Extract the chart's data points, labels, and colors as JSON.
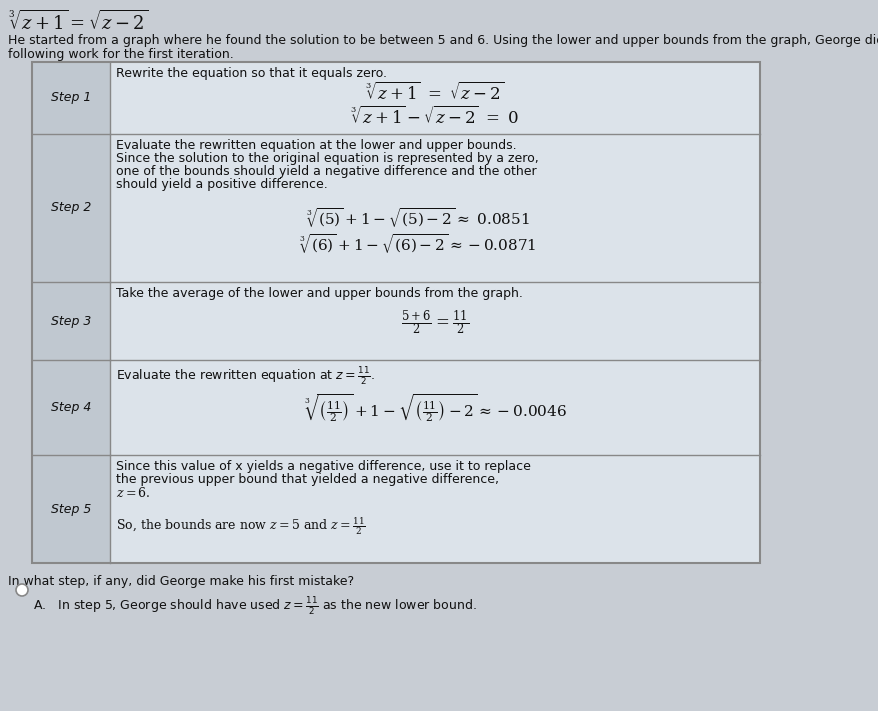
{
  "title_eq": "$\\sqrt[3]{z+1} = \\sqrt{z-2}$",
  "intro_line1": "He started from a graph where he found the solution to be between 5 and 6. Using the lower and upper bounds from the graph, George did the",
  "intro_line2": "following work for the first iteration.",
  "step1_label": "Step 1",
  "step1_desc": "Rewrite the equation so that it equals zero.",
  "step1_eq1": "$\\sqrt[3]{z+1} \\ = \\ \\sqrt{z-2}$",
  "step1_eq2": "$\\sqrt[3]{z+1} - \\sqrt{z-2} \\ = \\ 0$",
  "step2_label": "Step 2",
  "step2_desc1": "Evaluate the rewritten equation at the lower and upper bounds.",
  "step2_desc2": "Since the solution to the original equation is represented by a zero,",
  "step2_desc3": "one of the bounds should yield a negative difference and the other",
  "step2_desc4": "should yield a positive difference.",
  "step2_eq1": "$\\sqrt[3]{(5)} + 1 - \\sqrt{(5)-2} \\approx \\ 0.0851$",
  "step2_eq2": "$\\sqrt[3]{(6)} + 1 - \\sqrt{(6)-2} \\approx -0.0871$",
  "step3_label": "Step 3",
  "step3_desc": "Take the average of the lower and upper bounds from the graph.",
  "step3_eq": "$\\frac{5+6}{2} = \\frac{11}{2}$",
  "step4_label": "Step 4",
  "step4_desc": "Evaluate the rewritten equation at $z = \\frac{11}{2}$.",
  "step4_eq": "$\\sqrt[3]{\\left(\\frac{11}{2}\\right)} + 1 - \\sqrt{\\left(\\frac{11}{2}\\right)-2} \\approx -0.0046$",
  "step5_label": "Step 5",
  "step5_desc1": "Since this value of x yields a negative difference, use it to replace",
  "step5_desc2": "the previous upper bound that yielded a negative difference,",
  "step5_desc3": "$z = 6$.",
  "step5_extra": "So, the bounds are now $z = 5$ and $z = \\frac{11}{2}$",
  "question": "In what step, if any, did George make his first mistake?",
  "answer_A": "A.   In step 5, George should have used $z = \\frac{11}{2}$ as the new lower bound.",
  "bg_color": "#c8cdd4",
  "cell_bg": "#dce3ea",
  "label_bg": "#c0c8d0",
  "border_color": "#888888",
  "text_color": "#111111",
  "radio_color": "#ffffff",
  "fs_title": 13,
  "fs_intro": 9,
  "fs_step": 9,
  "fs_eq": 10,
  "fs_eq_large": 11
}
